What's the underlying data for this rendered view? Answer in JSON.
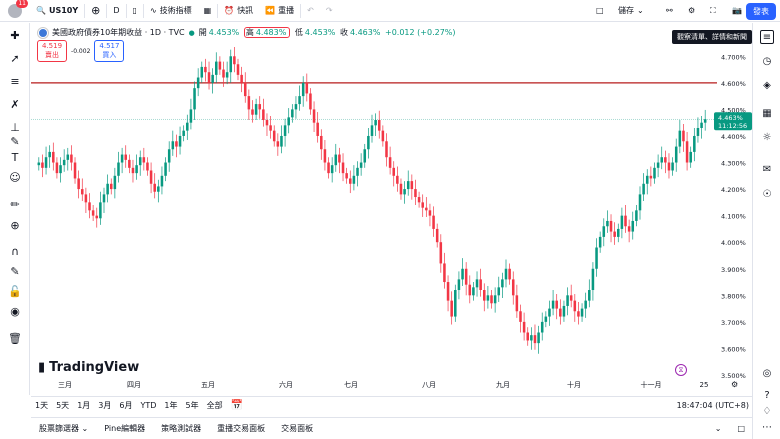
{
  "topbar": {
    "avatar_badge": "11",
    "symbol": "US10Y",
    "interval": "D",
    "indicators": "技術指標",
    "alert": "快訊",
    "replay": "重播",
    "save": "儲存",
    "publish": "發表"
  },
  "legend": {
    "title": "美國政府債券10年期收益 · 1D · TVC",
    "open_label": "開",
    "open": "4.453%",
    "high_label": "高",
    "high": "4.483%",
    "low_label": "低",
    "low": "4.453%",
    "close_label": "收",
    "close": "4.463%",
    "change": "+0.012 (+0.27%)"
  },
  "quote": {
    "sell_price": "4.519",
    "sell_label": "賣出",
    "spread": "-0.002",
    "buy_price": "4.517",
    "buy_label": "買入"
  },
  "tooltip": "觀察清單、詳情和新聞",
  "price_scale": {
    "ticks": [
      "4.700%",
      "4.600%",
      "4.500%",
      "4.400%",
      "4.300%",
      "4.200%",
      "4.100%",
      "4.000%",
      "3.900%",
      "3.800%",
      "3.700%",
      "3.600%",
      "3.500%"
    ],
    "last_price": "4.463%",
    "countdown": "11:12:56"
  },
  "time_scale": {
    "labels": [
      "三月",
      "四月",
      "五月",
      "六月",
      "七月",
      "八月",
      "九月",
      "十月",
      "十一月",
      "25"
    ]
  },
  "logo": "TradingView",
  "ranges": [
    "1天",
    "5天",
    "1月",
    "3月",
    "6月",
    "YTD",
    "1年",
    "5年",
    "全部"
  ],
  "clock": "18:47:04 (UTC+8)",
  "bottom_tabs": [
    "股票篩選器",
    "Pine編輯器",
    "策略測試器",
    "重播交易面板",
    "交易面板"
  ],
  "colors": {
    "up": "#089981",
    "down": "#f23645",
    "horizontal_line": "#b71c1c",
    "accent": "#2962ff"
  },
  "chart_data": {
    "type": "candlestick",
    "horizontal_line": 4.6,
    "last_price": 4.463,
    "ylim": [
      3.5,
      4.75
    ],
    "candles_close": [
      4.3,
      4.28,
      4.32,
      4.34,
      4.3,
      4.26,
      4.29,
      4.31,
      4.33,
      4.3,
      4.24,
      4.2,
      4.18,
      4.15,
      4.12,
      4.1,
      4.09,
      4.15,
      4.18,
      4.22,
      4.2,
      4.25,
      4.3,
      4.33,
      4.31,
      4.28,
      4.26,
      4.29,
      4.32,
      4.3,
      4.27,
      4.22,
      4.19,
      4.21,
      4.25,
      4.3,
      4.35,
      4.38,
      4.36,
      4.4,
      4.42,
      4.45,
      4.5,
      4.58,
      4.62,
      4.66,
      4.64,
      4.6,
      4.63,
      4.68,
      4.65,
      4.62,
      4.64,
      4.7,
      4.67,
      4.63,
      4.6,
      4.55,
      4.5,
      4.48,
      4.52,
      4.5,
      4.46,
      4.44,
      4.42,
      4.38,
      4.36,
      4.4,
      4.44,
      4.47,
      4.5,
      4.52,
      4.55,
      4.6,
      4.56,
      4.5,
      4.45,
      4.4,
      4.35,
      4.3,
      4.26,
      4.29,
      4.33,
      4.3,
      4.26,
      4.24,
      4.22,
      4.25,
      4.28,
      4.3,
      4.35,
      4.4,
      4.44,
      4.46,
      4.42,
      4.38,
      4.32,
      4.28,
      4.25,
      4.22,
      4.18,
      4.2,
      4.23,
      4.2,
      4.17,
      4.15,
      4.13,
      4.12,
      4.1,
      4.05,
      4.0,
      3.92,
      3.85,
      3.78,
      3.72,
      3.82,
      3.86,
      3.9,
      3.84,
      3.8,
      3.83,
      3.86,
      3.82,
      3.78,
      3.8,
      3.77,
      3.8,
      3.83,
      3.86,
      3.9,
      3.86,
      3.8,
      3.74,
      3.7,
      3.66,
      3.63,
      3.65,
      3.62,
      3.66,
      3.7,
      3.72,
      3.75,
      3.78,
      3.75,
      3.72,
      3.76,
      3.8,
      3.78,
      3.74,
      3.72,
      3.75,
      3.78,
      3.82,
      3.9,
      3.98,
      4.02,
      4.06,
      4.08,
      4.04,
      4.02,
      4.05,
      4.1,
      4.06,
      4.04,
      4.08,
      4.12,
      4.18,
      4.22,
      4.25,
      4.24,
      4.28,
      4.3,
      4.32,
      4.3,
      4.27,
      4.3,
      4.36,
      4.42,
      4.38,
      4.3,
      4.34,
      4.4,
      4.43,
      4.45,
      4.463
    ]
  }
}
